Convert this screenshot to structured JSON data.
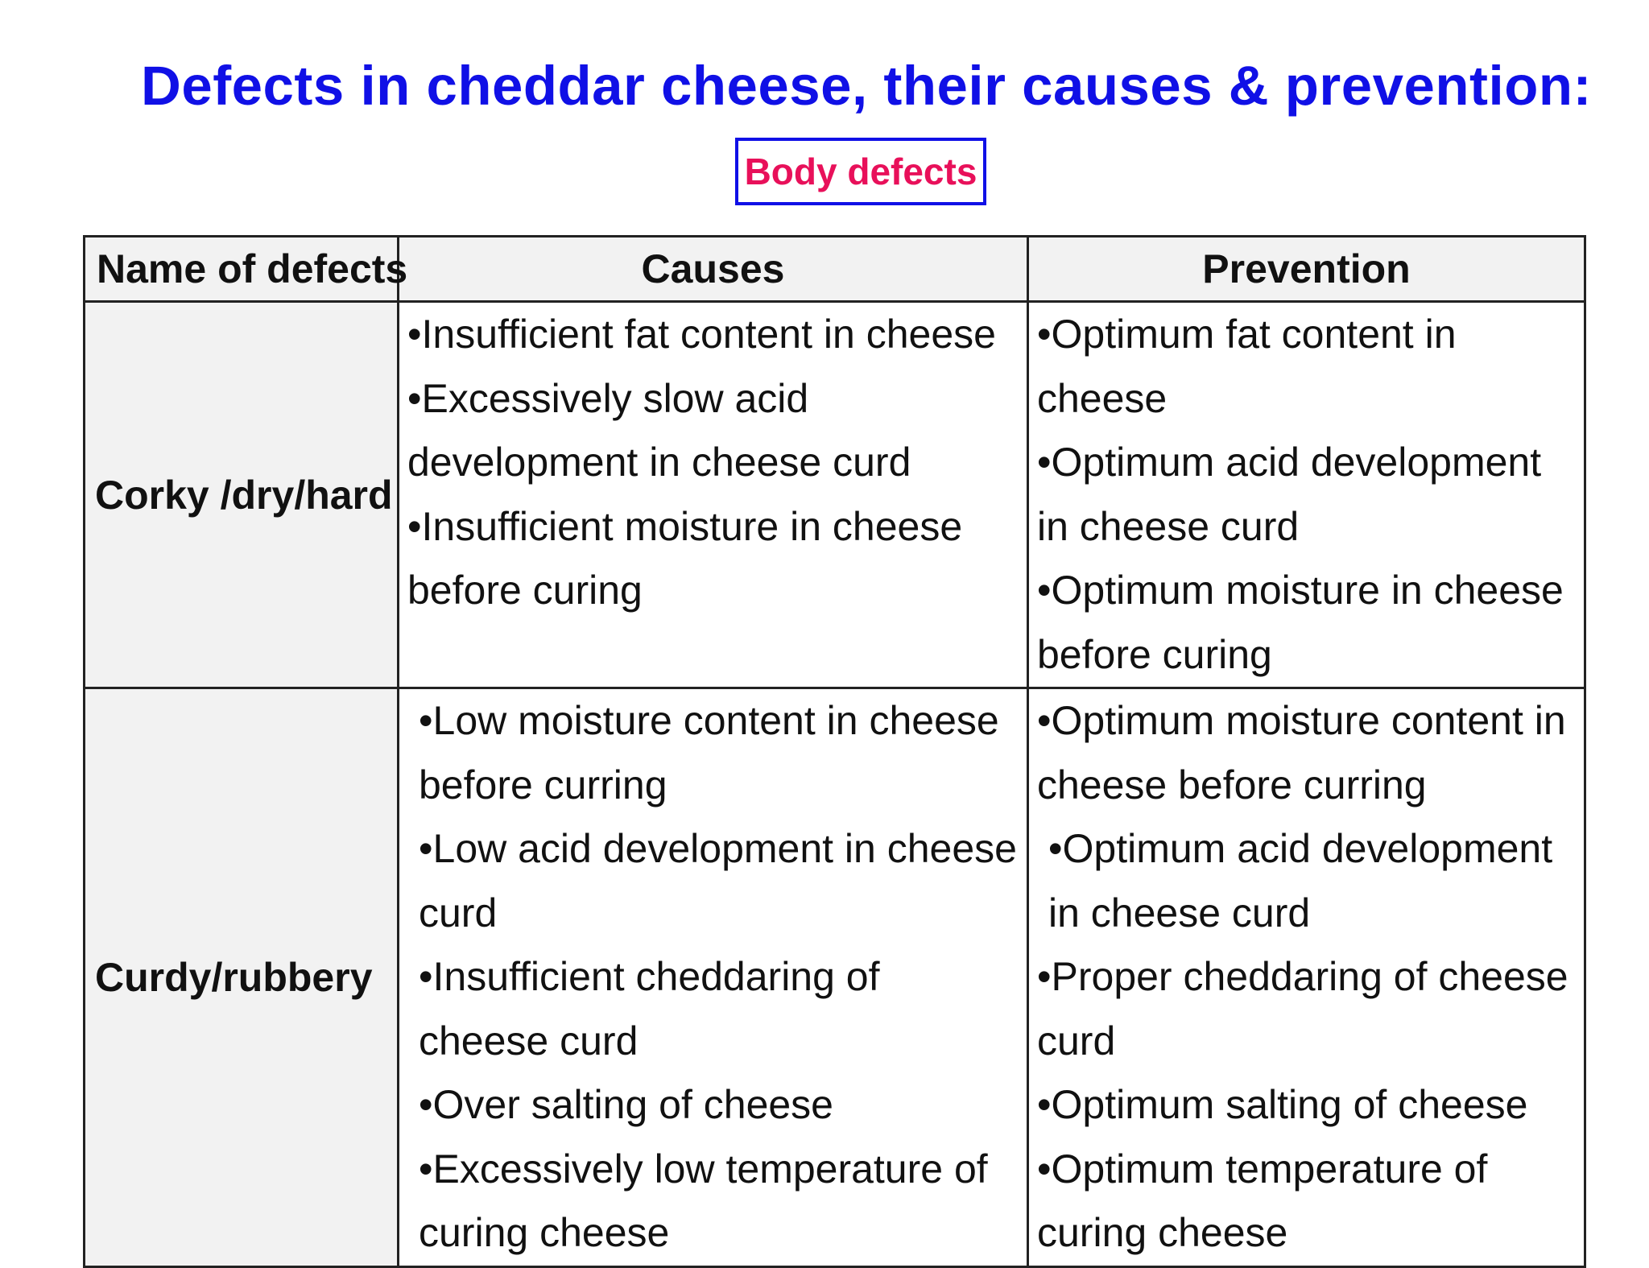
{
  "title": "Defects in cheddar cheese, their causes & prevention:",
  "badge": "Body defects",
  "colors": {
    "title": "#1010e6",
    "badge_text": "#e8105a",
    "badge_border": "#1010e6",
    "header_bg": "#f2f2f2"
  },
  "table": {
    "headers": [
      "Name of defects",
      "Causes",
      "Prevention"
    ],
    "rows": [
      {
        "name": "Corky /dry/hard",
        "causes": [
          "•Insufficient fat content in cheese",
          "•Excessively slow acid development in cheese curd",
          "•Insufficient moisture in cheese before  curing"
        ],
        "prevention": [
          "•Optimum fat content in cheese",
          "•Optimum acid development in cheese curd",
          "•Optimum moisture in cheese before  curing"
        ]
      },
      {
        "name": "Curdy/rubbery",
        "causes": [
          "•Low moisture content in cheese before curring",
          "•Low acid development in cheese curd",
          "•Insufficient cheddaring of cheese curd",
          "•Over salting of cheese",
          "•Excessively low temperature of curing cheese"
        ],
        "prevention": [
          "•Optimum  moisture content in cheese before curring",
          " •Optimum acid development in cheese curd",
          "•Proper cheddaring of cheese curd",
          "•Optimum salting of cheese",
          "•Optimum temperature of curing cheese"
        ]
      }
    ]
  }
}
